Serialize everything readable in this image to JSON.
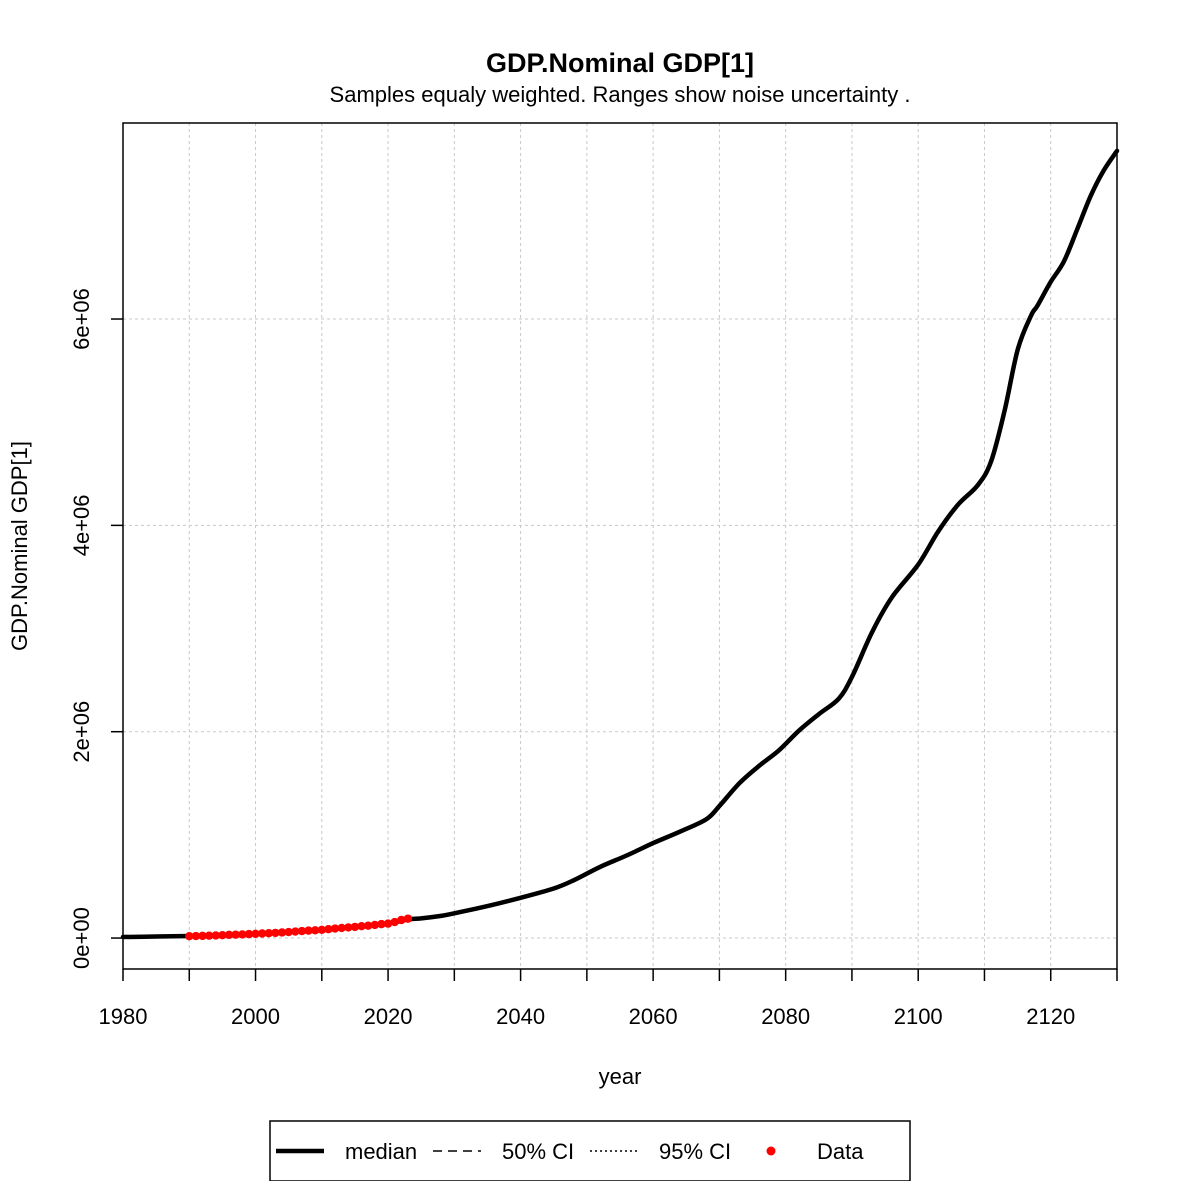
{
  "chart_data": {
    "type": "line",
    "title": "GDP.Nominal GDP[1]",
    "subtitle": "Samples equaly weighted. Ranges show  noise uncertainty .",
    "xlabel": "year",
    "ylabel": "GDP.Nominal GDP[1]",
    "xlim": [
      1980,
      2130
    ],
    "ylim": [
      -300000,
      7900000
    ],
    "x_ticks": [
      1980,
      2000,
      2020,
      2040,
      2060,
      2080,
      2100,
      2120
    ],
    "x_minor_ticks": [
      1990,
      2010,
      2030,
      2050,
      2070,
      2090,
      2110,
      2130
    ],
    "y_ticks": [
      0,
      2000000,
      4000000,
      6000000
    ],
    "y_tick_labels": [
      "0e+00",
      "2e+06",
      "4e+06",
      "6e+06"
    ],
    "grid": true,
    "legend_position": "bottom",
    "legend": [
      {
        "label": "median",
        "style": "solid"
      },
      {
        "label": "50% CI",
        "style": "dashed"
      },
      {
        "label": "95% CI",
        "style": "dotted"
      },
      {
        "label": "Data",
        "style": "point",
        "color": "#ff0000"
      }
    ],
    "series": [
      {
        "name": "median",
        "color": "#000000",
        "x": [
          1980,
          1985,
          1990,
          1995,
          2000,
          2005,
          2010,
          2015,
          2020,
          2023,
          2025,
          2028,
          2030,
          2035,
          2040,
          2045,
          2048,
          2052,
          2056,
          2060,
          2064,
          2068,
          2070,
          2073,
          2076,
          2079,
          2082,
          2085,
          2088,
          2090,
          2093,
          2096,
          2100,
          2103,
          2106,
          2109,
          2111,
          2113,
          2115,
          2117,
          2118,
          2120,
          2122,
          2124,
          2126,
          2128,
          2130
        ],
        "y": [
          10000,
          15000,
          20000,
          28000,
          40000,
          60000,
          80000,
          110000,
          140000,
          180000,
          190000,
          215000,
          240000,
          310000,
          390000,
          480000,
          560000,
          690000,
          800000,
          920000,
          1030000,
          1150000,
          1280000,
          1500000,
          1670000,
          1820000,
          2010000,
          2170000,
          2320000,
          2530000,
          2960000,
          3300000,
          3620000,
          3940000,
          4200000,
          4390000,
          4620000,
          5100000,
          5700000,
          6030000,
          6130000,
          6360000,
          6560000,
          6870000,
          7190000,
          7440000,
          7630000
        ]
      }
    ],
    "data_points": {
      "name": "Data",
      "color": "#ff0000",
      "x": [
        1990,
        1991,
        1992,
        1993,
        1994,
        1995,
        1996,
        1997,
        1998,
        1999,
        2000,
        2001,
        2002,
        2003,
        2004,
        2005,
        2006,
        2007,
        2008,
        2009,
        2010,
        2011,
        2012,
        2013,
        2014,
        2015,
        2016,
        2017,
        2018,
        2019,
        2020,
        2021,
        2022,
        2023
      ],
      "y": [
        18000,
        19000,
        21000,
        23000,
        25000,
        28000,
        31000,
        33000,
        35000,
        38000,
        41000,
        44000,
        47000,
        50000,
        54000,
        58000,
        63000,
        68000,
        72000,
        75000,
        80000,
        86000,
        92000,
        98000,
        103000,
        108000,
        115000,
        120000,
        127000,
        135000,
        140000,
        155000,
        175000,
        188000
      ]
    }
  }
}
